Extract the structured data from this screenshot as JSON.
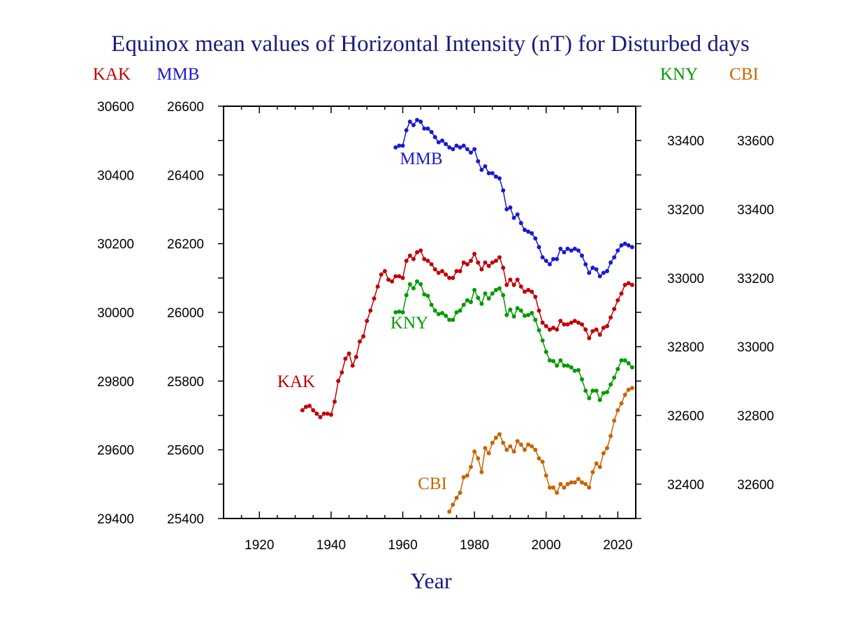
{
  "chart_data": {
    "type": "line",
    "title": "Equinox mean values of Horizontal Intensity (nT) for Disturbed days",
    "xlabel": "Year",
    "xlim": [
      1910,
      2025
    ],
    "x_ticks": [
      1920,
      1940,
      1960,
      1980,
      2000,
      2020
    ],
    "x_tick_labels": [
      "1920",
      "1940",
      "1960",
      "1980",
      "2000",
      "2020"
    ],
    "grid": false,
    "axes": {
      "left_outer": {
        "label": "KAK",
        "color": "#c00000",
        "ylim": [
          29400,
          30600
        ],
        "tick_labels": [
          "29400",
          "29600",
          "29800",
          "30000",
          "30200",
          "30400",
          "30600"
        ]
      },
      "left_inner": {
        "label": "MMB",
        "color": "#1a1acc",
        "ylim": [
          25400,
          26600
        ],
        "tick_labels": [
          "25400",
          "25600",
          "25800",
          "26000",
          "26200",
          "26400",
          "26600"
        ]
      },
      "right_inner": {
        "label": "KNY",
        "color": "#009900",
        "ylim": [
          32300,
          33500
        ],
        "tick_labels": [
          "32400",
          "32600",
          "32800",
          "33000",
          "33200",
          "33400"
        ]
      },
      "right_outer": {
        "label": "CBI",
        "color": "#c86400",
        "ylim": [
          32500,
          33700
        ],
        "tick_labels": [
          "32600",
          "32800",
          "33000",
          "33200",
          "33400",
          "33600"
        ]
      }
    },
    "series": [
      {
        "name": "MMB",
        "axis": "left_inner",
        "color": "#1a1acc",
        "x": [
          1958,
          1959,
          1960,
          1961,
          1962,
          1963,
          1964,
          1965,
          1966,
          1967,
          1968,
          1969,
          1970,
          1971,
          1972,
          1973,
          1974,
          1975,
          1976,
          1977,
          1978,
          1979,
          1980,
          1981,
          1982,
          1983,
          1984,
          1985,
          1986,
          1987,
          1988,
          1989,
          1990,
          1991,
          1992,
          1993,
          1994,
          1995,
          1996,
          1997,
          1998,
          1999,
          2000,
          2001,
          2002,
          2003,
          2004,
          2005,
          2006,
          2007,
          2008,
          2009,
          2010,
          2011,
          2012,
          2013,
          2014,
          2015,
          2016,
          2017,
          2018,
          2019,
          2020,
          2021,
          2022,
          2023,
          2024
        ],
        "y": [
          26480,
          26485,
          26485,
          26530,
          26555,
          26545,
          26560,
          26555,
          26535,
          26535,
          26525,
          26510,
          26495,
          26500,
          26490,
          26480,
          26475,
          26485,
          26480,
          26485,
          26475,
          26465,
          26475,
          26440,
          26415,
          26425,
          26405,
          26405,
          26395,
          26390,
          26355,
          26300,
          26305,
          26275,
          26285,
          26260,
          26240,
          26235,
          26230,
          26215,
          26190,
          26160,
          26150,
          26140,
          26155,
          26155,
          26185,
          26175,
          26185,
          26180,
          26185,
          26180,
          26165,
          26140,
          26115,
          26130,
          26125,
          26105,
          26115,
          26120,
          26145,
          26160,
          26180,
          26195,
          26200,
          26195,
          26190
        ]
      },
      {
        "name": "KAK",
        "axis": "left_outer",
        "color": "#c00000",
        "x": [
          1932,
          1933,
          1934,
          1935,
          1936,
          1937,
          1938,
          1939,
          1940,
          1941,
          1942,
          1943,
          1944,
          1945,
          1946,
          1947,
          1948,
          1949,
          1950,
          1951,
          1952,
          1953,
          1954,
          1955,
          1956,
          1957,
          1958,
          1959,
          1960,
          1961,
          1962,
          1963,
          1964,
          1965,
          1966,
          1967,
          1968,
          1969,
          1970,
          1971,
          1972,
          1973,
          1974,
          1975,
          1976,
          1977,
          1978,
          1979,
          1980,
          1981,
          1982,
          1983,
          1984,
          1985,
          1986,
          1987,
          1988,
          1989,
          1990,
          1991,
          1992,
          1993,
          1994,
          1995,
          1996,
          1997,
          1998,
          1999,
          2000,
          2001,
          2002,
          2003,
          2004,
          2005,
          2006,
          2007,
          2008,
          2009,
          2010,
          2011,
          2012,
          2013,
          2014,
          2015,
          2016,
          2017,
          2018,
          2019,
          2020,
          2021,
          2022,
          2023,
          2024
        ],
        "y": [
          29715,
          29725,
          29728,
          29715,
          29705,
          29695,
          29705,
          29705,
          29702,
          29740,
          29800,
          29825,
          29865,
          29880,
          29845,
          29870,
          29915,
          29930,
          29975,
          30005,
          30040,
          30075,
          30110,
          30120,
          30095,
          30090,
          30105,
          30105,
          30100,
          30150,
          30165,
          30155,
          30175,
          30180,
          30155,
          30150,
          30140,
          30125,
          30115,
          30120,
          30110,
          30100,
          30100,
          30120,
          30120,
          30145,
          30140,
          30150,
          30170,
          30145,
          30125,
          30145,
          30135,
          30145,
          30150,
          30160,
          30130,
          30080,
          30095,
          30080,
          30095,
          30075,
          30060,
          30065,
          30060,
          30045,
          30005,
          29970,
          29960,
          29950,
          29955,
          29950,
          29975,
          29965,
          29965,
          29970,
          29975,
          29970,
          29965,
          29950,
          29925,
          29945,
          29950,
          29935,
          29955,
          29960,
          29985,
          30010,
          30035,
          30055,
          30080,
          30085,
          30080
        ]
      },
      {
        "name": "KNY",
        "axis": "right_inner",
        "color": "#009900",
        "x": [
          1958,
          1959,
          1960,
          1961,
          1962,
          1963,
          1964,
          1965,
          1966,
          1967,
          1968,
          1969,
          1970,
          1971,
          1972,
          1973,
          1974,
          1975,
          1976,
          1977,
          1978,
          1979,
          1980,
          1981,
          1982,
          1983,
          1984,
          1985,
          1986,
          1987,
          1988,
          1989,
          1990,
          1991,
          1992,
          1993,
          1994,
          1995,
          1996,
          1997,
          1998,
          1999,
          2000,
          2001,
          2002,
          2003,
          2004,
          2005,
          2006,
          2007,
          2008,
          2009,
          2010,
          2011,
          2012,
          2013,
          2014,
          2015,
          2016,
          2017,
          2018,
          2019,
          2020,
          2021,
          2022,
          2023,
          2024
        ],
        "y": [
          32900,
          32902,
          32900,
          32950,
          32982,
          32970,
          32990,
          32982,
          32952,
          32948,
          32922,
          32905,
          32895,
          32898,
          32890,
          32878,
          32878,
          32900,
          32905,
          32922,
          32935,
          32930,
          32965,
          32942,
          32925,
          32955,
          32940,
          32955,
          32965,
          32970,
          32950,
          32892,
          32908,
          32888,
          32912,
          32905,
          32890,
          32892,
          32898,
          32878,
          32848,
          32818,
          32785,
          32760,
          32758,
          32745,
          32760,
          32745,
          32745,
          32740,
          32730,
          32732,
          32705,
          32672,
          32650,
          32672,
          32672,
          32645,
          32665,
          32668,
          32690,
          32710,
          32735,
          32760,
          32760,
          32752,
          32740
        ]
      },
      {
        "name": "CBI",
        "axis": "right_outer",
        "color": "#c86400",
        "x": [
          1973,
          1974,
          1975,
          1976,
          1977,
          1978,
          1979,
          1980,
          1981,
          1982,
          1983,
          1984,
          1985,
          1986,
          1987,
          1988,
          1989,
          1990,
          1991,
          1992,
          1993,
          1994,
          1995,
          1996,
          1997,
          1998,
          1999,
          2000,
          2001,
          2002,
          2003,
          2004,
          2005,
          2006,
          2007,
          2008,
          2009,
          2010,
          2011,
          2012,
          2013,
          2014,
          2015,
          2016,
          2017,
          2018,
          2019,
          2020,
          2021,
          2022,
          2023,
          2024
        ],
        "y": [
          32520,
          32540,
          32560,
          32575,
          32620,
          32625,
          32650,
          32695,
          32675,
          32635,
          32705,
          32690,
          32720,
          32735,
          32745,
          32720,
          32700,
          32710,
          32695,
          32725,
          32715,
          32700,
          32715,
          32710,
          32700,
          32675,
          32665,
          32625,
          32590,
          32590,
          32575,
          32600,
          32590,
          32600,
          32605,
          32605,
          32615,
          32605,
          32600,
          32590,
          32635,
          32660,
          32650,
          32690,
          32705,
          32740,
          32785,
          32815,
          32835,
          32860,
          32875,
          32880
        ]
      }
    ]
  }
}
